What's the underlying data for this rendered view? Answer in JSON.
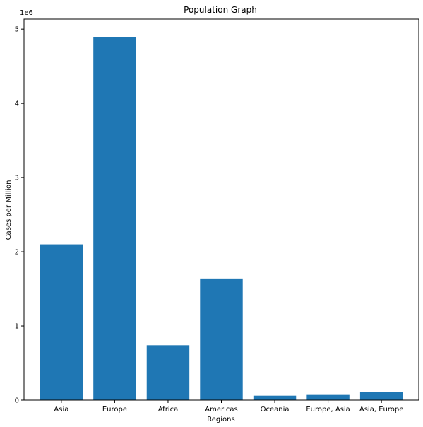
{
  "chart_data": {
    "type": "bar",
    "title": "Population Graph",
    "xlabel": "Regions",
    "ylabel": "Cases per Million",
    "y_offset_label": "1e6",
    "categories": [
      "Asia",
      "Europe",
      "Africa",
      "Americas",
      "Oceania",
      "Europe, Asia",
      "Asia, Europe"
    ],
    "values": [
      2100000,
      4890000,
      740000,
      1640000,
      60000,
      70000,
      110000
    ],
    "y_ticks": [
      0,
      1000000,
      2000000,
      3000000,
      4000000,
      5000000
    ],
    "y_tick_labels": [
      "0",
      "1",
      "2",
      "3",
      "4",
      "5"
    ],
    "ylim": [
      0,
      5135000
    ],
    "bar_color": "#1f77b4",
    "grid": false,
    "legend": "none"
  }
}
